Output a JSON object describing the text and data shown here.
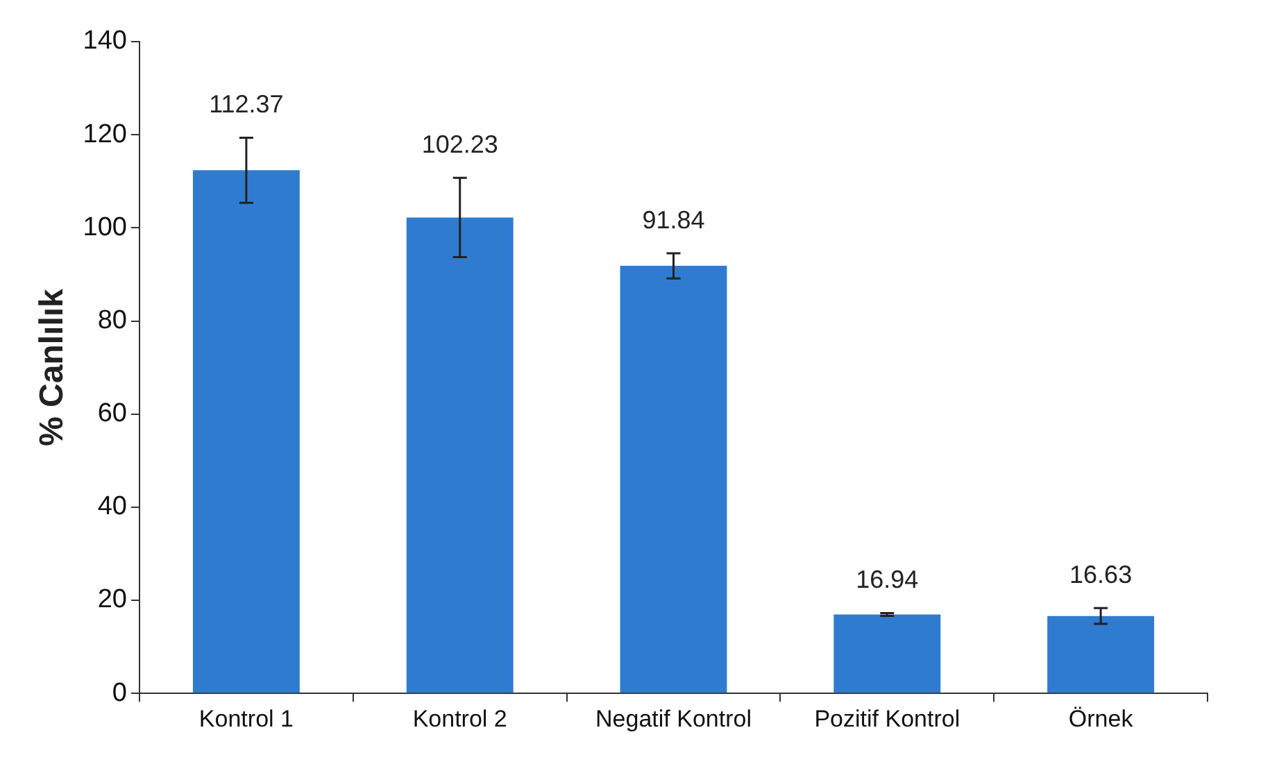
{
  "chart_data": {
    "type": "bar",
    "ylabel": "% Canlılık",
    "categories": [
      "Kontrol 1",
      "Kontrol 2",
      "Negatif Kontrol",
      "Pozitif Kontrol",
      "Örnek"
    ],
    "values": [
      112.37,
      102.23,
      91.84,
      16.94,
      16.63
    ],
    "errors": [
      7,
      8.5,
      2.7,
      0.3,
      1.7
    ],
    "color": "#2f7bd0",
    "ylim": [
      0,
      140
    ],
    "yticks": [
      0,
      20,
      40,
      60,
      80,
      100,
      120,
      140
    ],
    "grid": false,
    "legend": false,
    "data_labels": true
  }
}
